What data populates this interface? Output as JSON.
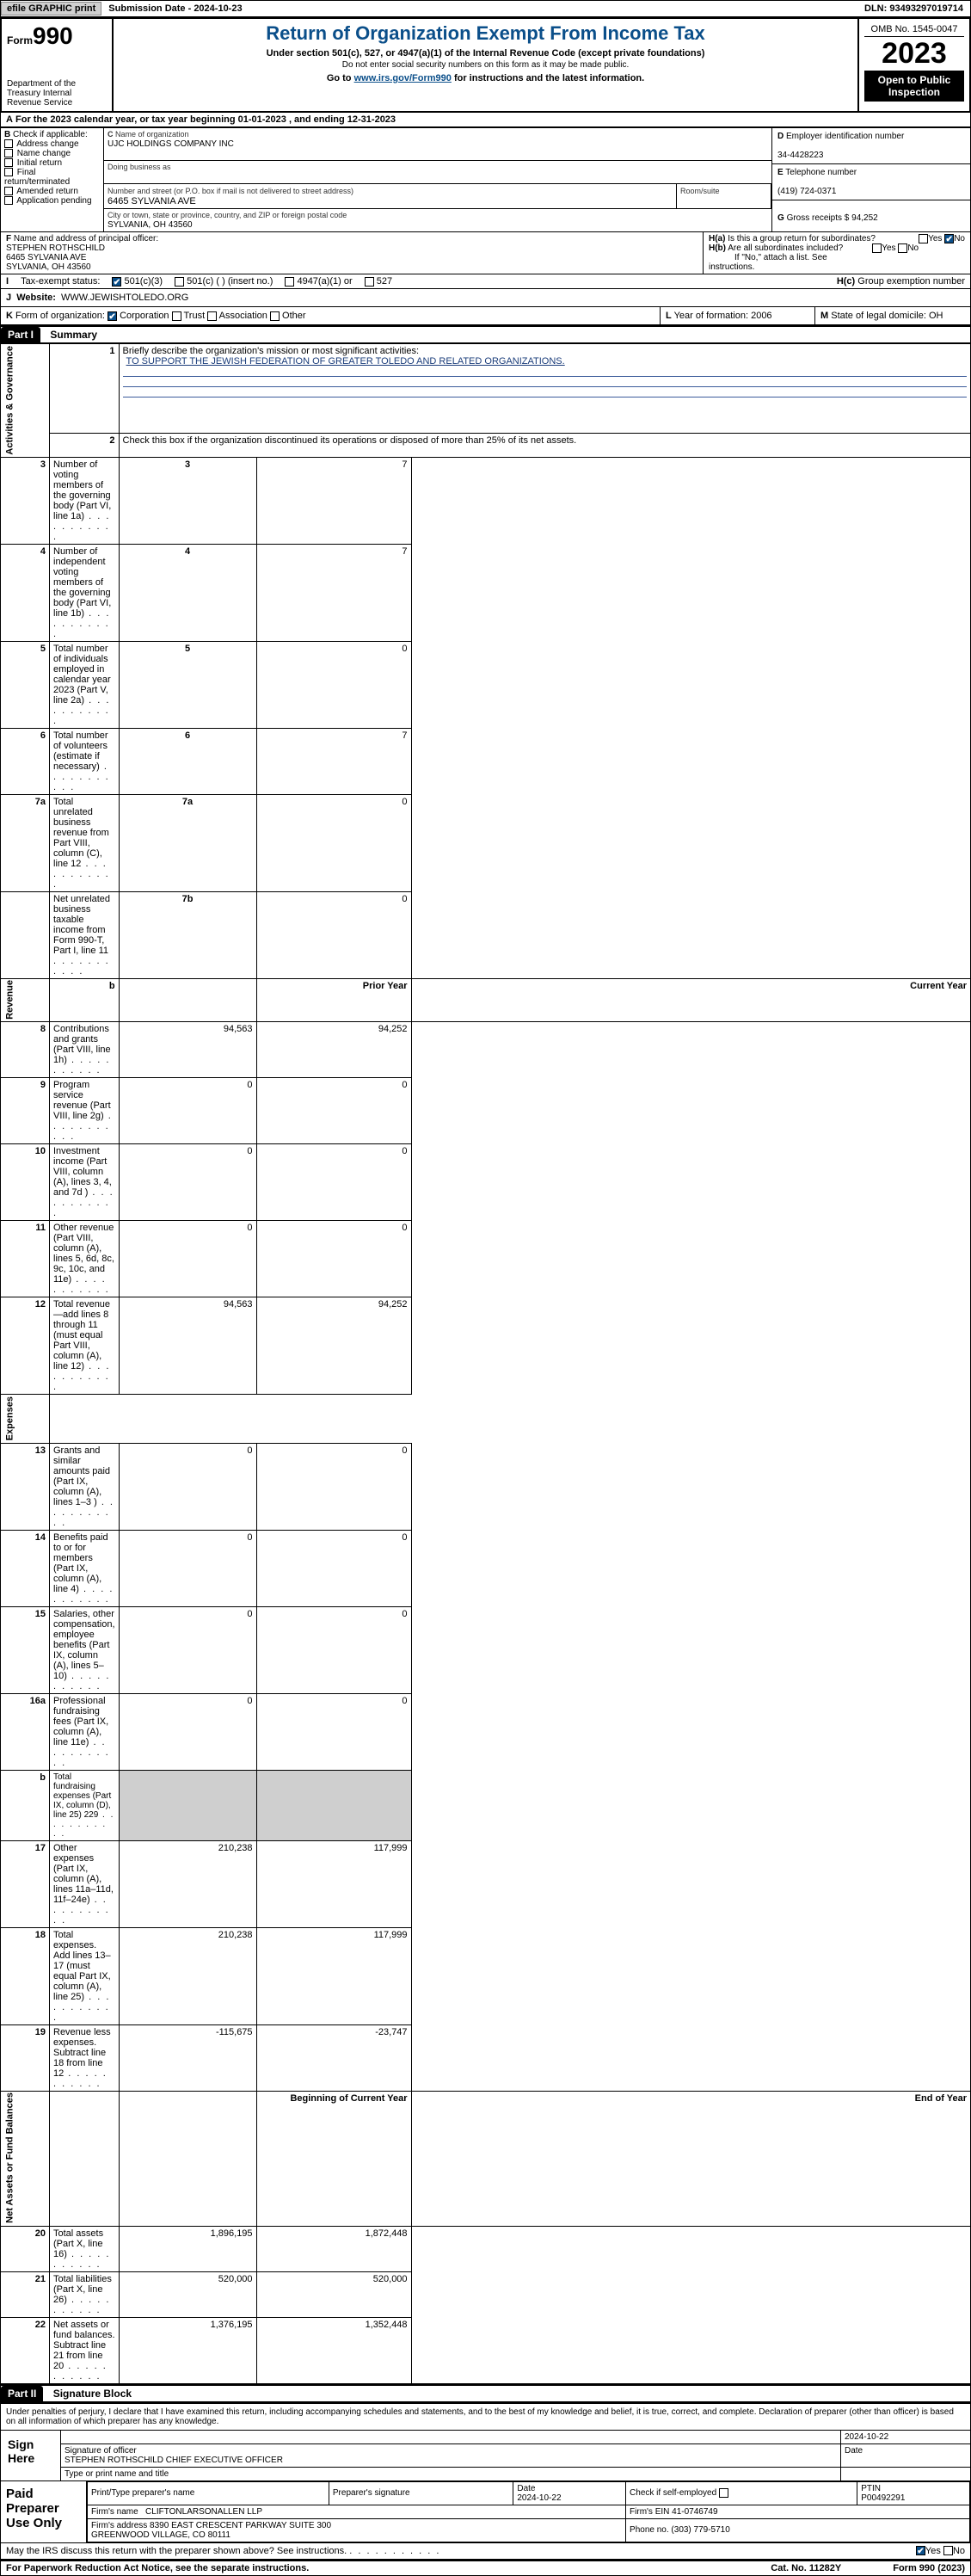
{
  "topbar": {
    "efile": "efile GRAPHIC print",
    "sub_label": "Submission Date - 2024-10-23",
    "dln": "DLN: 93493297019714"
  },
  "header": {
    "form_prefix": "Form",
    "form_no": "990",
    "dept": "Department of the Treasury Internal Revenue Service",
    "title": "Return of Organization Exempt From Income Tax",
    "sub": "Under section 501(c), 527, or 4947(a)(1) of the Internal Revenue Code (except private foundations)",
    "sub2": "Do not enter social security numbers on this form as it may be made public.",
    "linktxt_pre": "Go to ",
    "link": "www.irs.gov/Form990",
    "linktxt_post": " for instructions and the latest information.",
    "omb": "OMB No. 1545-0047",
    "year": "2023",
    "open": "Open to Public Inspection"
  },
  "A": {
    "text": "For the 2023 calendar year, or tax year beginning 01-01-2023   , and ending 12-31-2023"
  },
  "B": {
    "label": "Check if applicable:",
    "opts": [
      "Address change",
      "Name change",
      "Initial return",
      "Final return/terminated",
      "Amended return",
      "Application pending"
    ]
  },
  "C": {
    "name_lab": "Name of organization",
    "name": "UJC HOLDINGS COMPANY INC",
    "dba_lab": "Doing business as",
    "addr_lab": "Number and street (or P.O. box if mail is not delivered to street address)",
    "addr": "6465 SYLVANIA AVE",
    "room_lab": "Room/suite",
    "city_lab": "City or town, state or province, country, and ZIP or foreign postal code",
    "city": "SYLVANIA, OH  43560"
  },
  "D": {
    "lab": "Employer identification number",
    "val": "34-4428223"
  },
  "E": {
    "lab": "Telephone number",
    "val": "(419) 724-0371"
  },
  "G": {
    "lab": "Gross receipts $",
    "val": "94,252"
  },
  "F": {
    "lab": "Name and address of principal officer:",
    "name": "STEPHEN ROTHSCHILD",
    "addr": "6465 SYLVANIA AVE",
    "city": "SYLVANIA, OH  43560"
  },
  "H": {
    "a": "Is this a group return for subordinates?",
    "b": "Are all subordinates included?",
    "note": "If \"No,\" attach a list. See instructions.",
    "c": "Group exemption number"
  },
  "I": {
    "lab": "Tax-exempt status:",
    "o1": "501(c)(3)",
    "o2": "501(c) (  ) (insert no.)",
    "o3": "4947(a)(1) or",
    "o4": "527"
  },
  "J": {
    "lab": "Website:",
    "val": "WWW.JEWISHTOLEDO.ORG"
  },
  "K": {
    "lab": "Form of organization:",
    "o1": "Corporation",
    "o2": "Trust",
    "o3": "Association",
    "o4": "Other"
  },
  "L": {
    "lab": "Year of formation:",
    "val": "2006"
  },
  "M": {
    "lab": "State of legal domicile:",
    "val": "OH"
  },
  "Part1": {
    "title": "Part I",
    "name": "Summary"
  },
  "summary": {
    "q1": "Briefly describe the organization's mission or most significant activities:",
    "mission": "TO SUPPORT THE JEWISH FEDERATION OF GREATER TOLEDO AND RELATED ORGANIZATIONS.",
    "q2": "Check this box      if the organization discontinued its operations or disposed of more than 25% of its net assets.",
    "lines_ag": [
      {
        "n": "3",
        "d": "Number of voting members of the governing body (Part VI, line 1a)",
        "r": "3",
        "v": "7"
      },
      {
        "n": "4",
        "d": "Number of independent voting members of the governing body (Part VI, line 1b)",
        "r": "4",
        "v": "7"
      },
      {
        "n": "5",
        "d": "Total number of individuals employed in calendar year 2023 (Part V, line 2a)",
        "r": "5",
        "v": "0"
      },
      {
        "n": "6",
        "d": "Total number of volunteers (estimate if necessary)",
        "r": "6",
        "v": "7"
      },
      {
        "n": "7a",
        "d": "Total unrelated business revenue from Part VIII, column (C), line 12",
        "r": "7a",
        "v": "0"
      },
      {
        "n": "",
        "d": "Net unrelated business taxable income from Form 990-T, Part I, line 11",
        "r": "7b",
        "v": "0"
      }
    ],
    "py": "Prior Year",
    "cy": "Current Year",
    "rev": [
      {
        "n": "8",
        "d": "Contributions and grants (Part VIII, line 1h)",
        "p": "94,563",
        "c": "94,252"
      },
      {
        "n": "9",
        "d": "Program service revenue (Part VIII, line 2g)",
        "p": "0",
        "c": "0"
      },
      {
        "n": "10",
        "d": "Investment income (Part VIII, column (A), lines 3, 4, and 7d )",
        "p": "0",
        "c": "0"
      },
      {
        "n": "11",
        "d": "Other revenue (Part VIII, column (A), lines 5, 6d, 8c, 9c, 10c, and 11e)",
        "p": "0",
        "c": "0"
      },
      {
        "n": "12",
        "d": "Total revenue—add lines 8 through 11 (must equal Part VIII, column (A), line 12)",
        "p": "94,563",
        "c": "94,252"
      }
    ],
    "exp": [
      {
        "n": "13",
        "d": "Grants and similar amounts paid (Part IX, column (A), lines 1–3 )",
        "p": "0",
        "c": "0"
      },
      {
        "n": "14",
        "d": "Benefits paid to or for members (Part IX, column (A), line 4)",
        "p": "0",
        "c": "0"
      },
      {
        "n": "15",
        "d": "Salaries, other compensation, employee benefits (Part IX, column (A), lines 5–10)",
        "p": "0",
        "c": "0"
      },
      {
        "n": "16a",
        "d": "Professional fundraising fees (Part IX, column (A), line 11e)",
        "p": "0",
        "c": "0"
      },
      {
        "n": "b",
        "d": "Total fundraising expenses (Part IX, column (D), line 25) 229",
        "p": "",
        "c": "",
        "grey": true,
        "small": true
      },
      {
        "n": "17",
        "d": "Other expenses (Part IX, column (A), lines 11a–11d, 11f–24e)",
        "p": "210,238",
        "c": "117,999"
      },
      {
        "n": "18",
        "d": "Total expenses. Add lines 13–17 (must equal Part IX, column (A), line 25)",
        "p": "210,238",
        "c": "117,999"
      },
      {
        "n": "19",
        "d": "Revenue less expenses. Subtract line 18 from line 12",
        "p": "-115,675",
        "c": "-23,747"
      }
    ],
    "bcy": "Beginning of Current Year",
    "ecy": "End of Year",
    "na": [
      {
        "n": "20",
        "d": "Total assets (Part X, line 16)",
        "p": "1,896,195",
        "c": "1,872,448"
      },
      {
        "n": "21",
        "d": "Total liabilities (Part X, line 26)",
        "p": "520,000",
        "c": "520,000"
      },
      {
        "n": "22",
        "d": "Net assets or fund balances. Subtract line 21 from line 20",
        "p": "1,376,195",
        "c": "1,352,448"
      }
    ],
    "sidelabels": {
      "ag": "Activities & Governance",
      "rev": "Revenue",
      "exp": "Expenses",
      "na": "Net Assets or Fund Balances"
    }
  },
  "Part2": {
    "title": "Part II",
    "name": "Signature Block"
  },
  "sig": {
    "decl": "Under penalties of perjury, I declare that I have examined this return, including accompanying schedules and statements, and to the best of my knowledge and belief, it is true, correct, and complete. Declaration of preparer (other than officer) is based on all information of which preparer has any knowledge.",
    "here": "Sign Here",
    "sig_of": "Signature of officer",
    "officer": "STEPHEN ROTHSCHILD  CHIEF EXECUTIVE OFFICER",
    "type": "Type or print name and title",
    "date_lab": "Date",
    "date": "2024-10-22",
    "paid": "Paid Preparer Use Only",
    "pname_lab": "Print/Type preparer's name",
    "psig_lab": "Preparer's signature",
    "pdate": "2024-10-22",
    "selfemp": "Check       if self-employed",
    "ptin_lab": "PTIN",
    "ptin": "P00492291",
    "firm_lab": "Firm's name",
    "firm": "CLIFTONLARSONALLEN LLP",
    "fein_lab": "Firm's EIN",
    "fein": "41-0746749",
    "faddr_lab": "Firm's address",
    "faddr": "8390 EAST CRESCENT PARKWAY SUITE 300\nGREENWOOD VILLAGE, CO  80111",
    "phone_lab": "Phone no.",
    "phone": "(303) 779-5710",
    "discuss": "May the IRS discuss this return with the preparer shown above? See instructions.",
    "yes": "Yes",
    "no": "No"
  },
  "footer": {
    "pra": "For Paperwork Reduction Act Notice, see the separate instructions.",
    "cat": "Cat. No. 11282Y",
    "form": "Form 990 (2023)"
  },
  "colors": {
    "link": "#0b4f8a",
    "ruleblue": "#3b5b9a",
    "grey": "#cfcfcf"
  }
}
